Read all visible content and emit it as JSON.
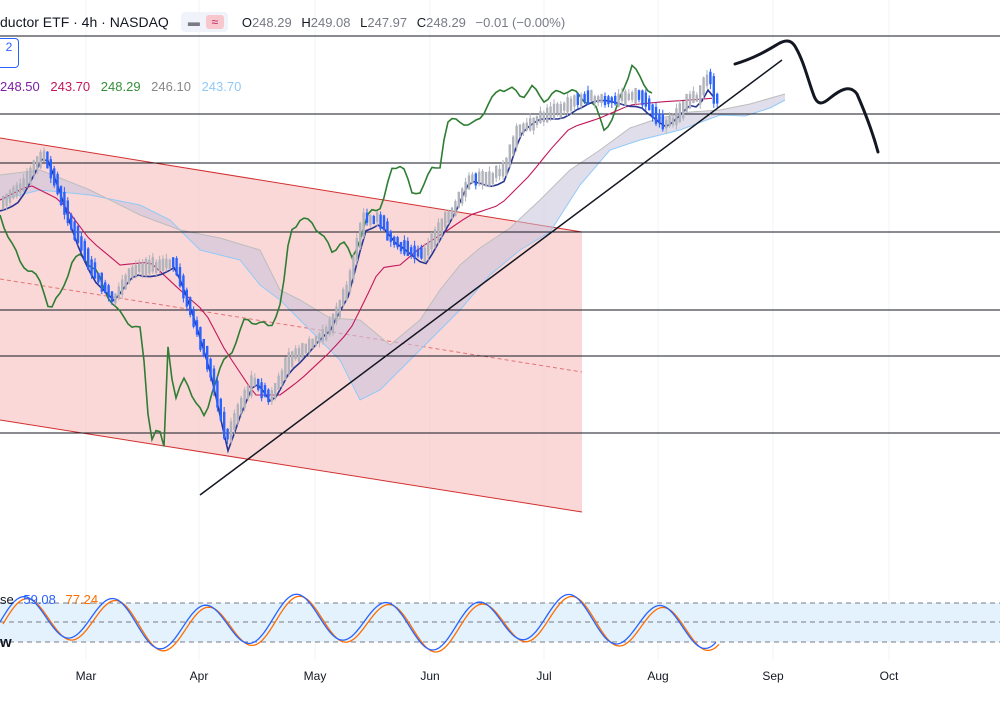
{
  "header": {
    "title": "ductor ETF · 4h · NASDAQ",
    "ohlc": [
      {
        "k": "O",
        "v": "248.29"
      },
      {
        "k": "H",
        "v": "249.08"
      },
      {
        "k": "L",
        "v": "247.97"
      },
      {
        "k": "C",
        "v": "248.29"
      }
    ],
    "change": "−0.01 (−0.00%)",
    "compare_icon": "≈"
  },
  "badge": "2",
  "ichimoku_values": [
    {
      "v": "248.50",
      "color": "#7b1fa2"
    },
    {
      "v": "243.70",
      "color": "#c2185b"
    },
    {
      "v": "248.29",
      "color": "#388e3c"
    },
    {
      "v": "246.10",
      "color": "#888888"
    },
    {
      "v": "243.70",
      "color": "#90caf9"
    }
  ],
  "stoch": {
    "label_fragment": "se",
    "k_value": "59.08",
    "d_value": "77.24",
    "k_color": "#2962ff",
    "d_color": "#ff6d00",
    "icon_fragment": "w"
  },
  "x_axis": [
    "Mar",
    "Apr",
    "May",
    "Jun",
    "Jul",
    "Aug",
    "Sep",
    "Oct"
  ],
  "colors": {
    "channel_fill": "#f8cbcb",
    "channel_line": "#e57373",
    "tenkan": "#7b1fa2",
    "kijun": "#c2185b",
    "chikou": "#388e3c",
    "kumo_fill": "#d1c4e9",
    "up_candle": "#b0b3bb",
    "down_candle": "#2962ff",
    "stoch_band": "#e3f2fd"
  },
  "chart_data": {
    "type": "candlestick",
    "symbol_fragment": "ductor ETF",
    "timeframe": "4h",
    "exchange": "NASDAQ",
    "x_labels": [
      "Mar",
      "Apr",
      "May",
      "Jun",
      "Jul",
      "Aug",
      "Sep",
      "Oct"
    ],
    "last_close": 248.29,
    "stochastic": {
      "k": 59.08,
      "d": 77.24
    },
    "ichimoku": {
      "conversion": 248.5,
      "base": 243.7,
      "lagging": 248.29,
      "lead_a": 246.1,
      "lead_b": 243.7
    }
  }
}
